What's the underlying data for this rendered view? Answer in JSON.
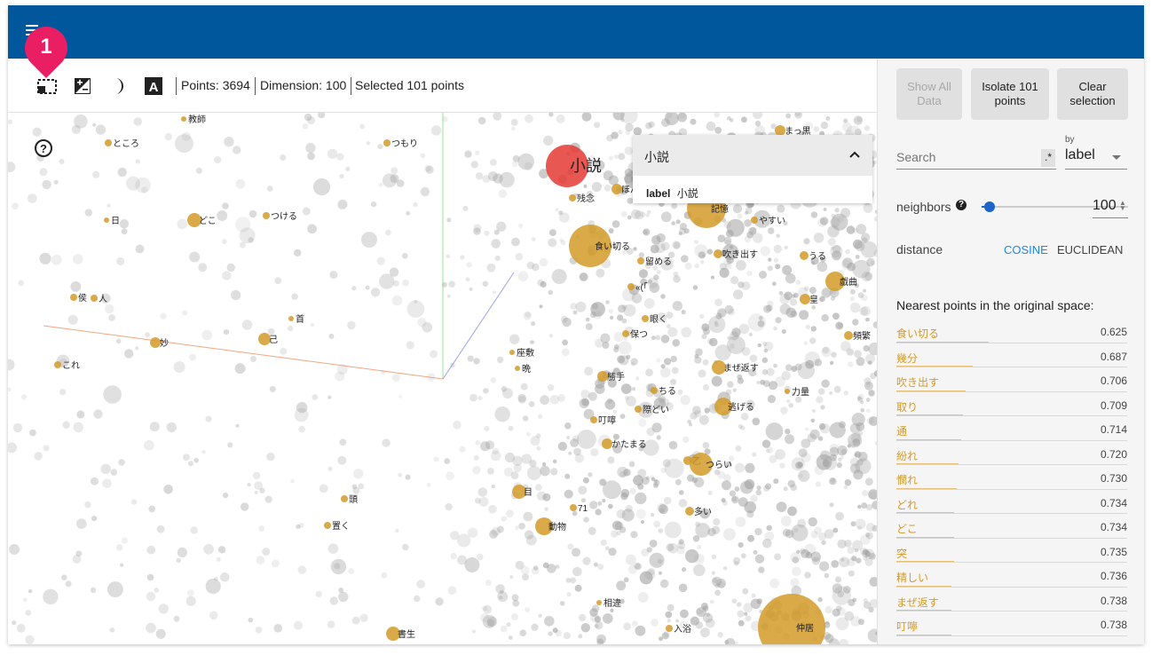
{
  "toolbar": {
    "points": "Points: 3694",
    "dimension": "Dimension: 100",
    "selected": "Selected 101 points"
  },
  "annotation_marker": "1",
  "scene": {
    "labels": [
      {
        "text": "教師",
        "color": "#d49a28"
      },
      {
        "text": "ところ",
        "color": "#d49a28"
      },
      {
        "text": "つもり",
        "color": "#d49a28"
      },
      {
        "text": "日",
        "color": "#d49a28"
      },
      {
        "text": "どこ",
        "color": "#d49a28"
      },
      {
        "text": "つける",
        "color": "#d49a28"
      },
      {
        "text": "侯",
        "color": "#d49a28"
      },
      {
        "text": "人",
        "color": "#d49a28"
      },
      {
        "text": "首",
        "color": "#d49a28"
      },
      {
        "text": "己",
        "color": "#d49a28"
      },
      {
        "text": "妙",
        "color": "#d49a28"
      },
      {
        "text": "これ",
        "color": "#d49a28"
      },
      {
        "text": "小説",
        "color": "#e53935"
      },
      {
        "text": "残念",
        "color": "#d49a28"
      },
      {
        "text": "ほん",
        "color": "#d49a28"
      },
      {
        "text": "記憶",
        "color": "#d49a28"
      },
      {
        "text": "まっ黒",
        "color": "#d49a28"
      },
      {
        "text": "やすい",
        "color": "#d49a28"
      },
      {
        "text": "食い切る",
        "color": "#d49a28"
      },
      {
        "text": "留める",
        "color": "#d49a28"
      },
      {
        "text": "吹き出す",
        "color": "#d49a28"
      },
      {
        "text": "うる",
        "color": "#d49a28"
      },
      {
        "text": "戯曲",
        "color": "#d49a28"
      },
      {
        "text": "«(「",
        "color": "#d49a28"
      },
      {
        "text": "皇",
        "color": "#d49a28"
      },
      {
        "text": "眼く",
        "color": "#d49a28"
      },
      {
        "text": "保つ",
        "color": "#d49a28"
      },
      {
        "text": "頻繁",
        "color": "#d49a28"
      },
      {
        "text": "座敷",
        "color": "#d49a28"
      },
      {
        "text": "晩",
        "color": "#d49a28"
      },
      {
        "text": "まぜ返す",
        "color": "#d49a28"
      },
      {
        "text": "勝手",
        "color": "#d49a28"
      },
      {
        "text": "ちる",
        "color": "#d49a28"
      },
      {
        "text": "力量",
        "color": "#d49a28"
      },
      {
        "text": "際どい",
        "color": "#d49a28"
      },
      {
        "text": "逃げる",
        "color": "#d49a28"
      },
      {
        "text": "叮嚀",
        "color": "#d49a28"
      },
      {
        "text": "かたまる",
        "color": "#d49a28"
      },
      {
        "text": "乙",
        "color": "#d49a28"
      },
      {
        "text": "つらい",
        "color": "#d49a28"
      },
      {
        "text": "頭",
        "color": "#d49a28"
      },
      {
        "text": "目",
        "color": "#d49a28"
      },
      {
        "text": "71",
        "color": "#d49a28"
      },
      {
        "text": "多い",
        "color": "#d49a28"
      },
      {
        "text": "置く",
        "color": "#d49a28"
      },
      {
        "text": "動物",
        "color": "#d49a28"
      },
      {
        "text": "相違",
        "color": "#d49a28"
      },
      {
        "text": "入浴",
        "color": "#d49a28"
      },
      {
        "text": "仲居",
        "color": "#d49a28"
      },
      {
        "text": "書生",
        "color": "#d49a28"
      }
    ]
  },
  "infocard": {
    "title": "小説",
    "field": "label",
    "value": "小説"
  },
  "panel": {
    "show_all": "Show All Data",
    "isolate": "Isolate 101 points",
    "clear": "Clear selection",
    "search_placeholder": "Search",
    "regex": ".*",
    "by_label": "by",
    "by_value": "label",
    "neighbors_label": "neighbors",
    "neighbors_value": "100",
    "distance_label": "distance",
    "cosine": "COSINE",
    "euclidean": "EUCLIDEAN",
    "nearest_title": "Nearest points in the original space:",
    "nearest": [
      {
        "word": "食い切る",
        "value": "0.625",
        "fraction": 0.4
      },
      {
        "word": "幾分",
        "value": "0.687",
        "fraction": 0.33
      },
      {
        "word": "吹き出す",
        "value": "0.706",
        "fraction": 0.3
      },
      {
        "word": "取り",
        "value": "0.709",
        "fraction": 0.29
      },
      {
        "word": "通",
        "value": "0.714",
        "fraction": 0.28
      },
      {
        "word": "紛れ",
        "value": "0.720",
        "fraction": 0.27
      },
      {
        "word": "憫れ",
        "value": "0.730",
        "fraction": 0.26
      },
      {
        "word": "どれ",
        "value": "0.734",
        "fraction": 0.25
      },
      {
        "word": "どこ",
        "value": "0.734",
        "fraction": 0.25
      },
      {
        "word": "突",
        "value": "0.735",
        "fraction": 0.25
      },
      {
        "word": "精しい",
        "value": "0.736",
        "fraction": 0.24
      },
      {
        "word": "まぜ返す",
        "value": "0.738",
        "fraction": 0.24
      },
      {
        "word": "叮嚀",
        "value": "0.738",
        "fraction": 0.24
      }
    ]
  },
  "colors": {
    "header": "#01579b",
    "accent": "#1e63c9",
    "highlight": "#d49a28",
    "selected_point": "#e53935",
    "marker": "#e91e63"
  }
}
